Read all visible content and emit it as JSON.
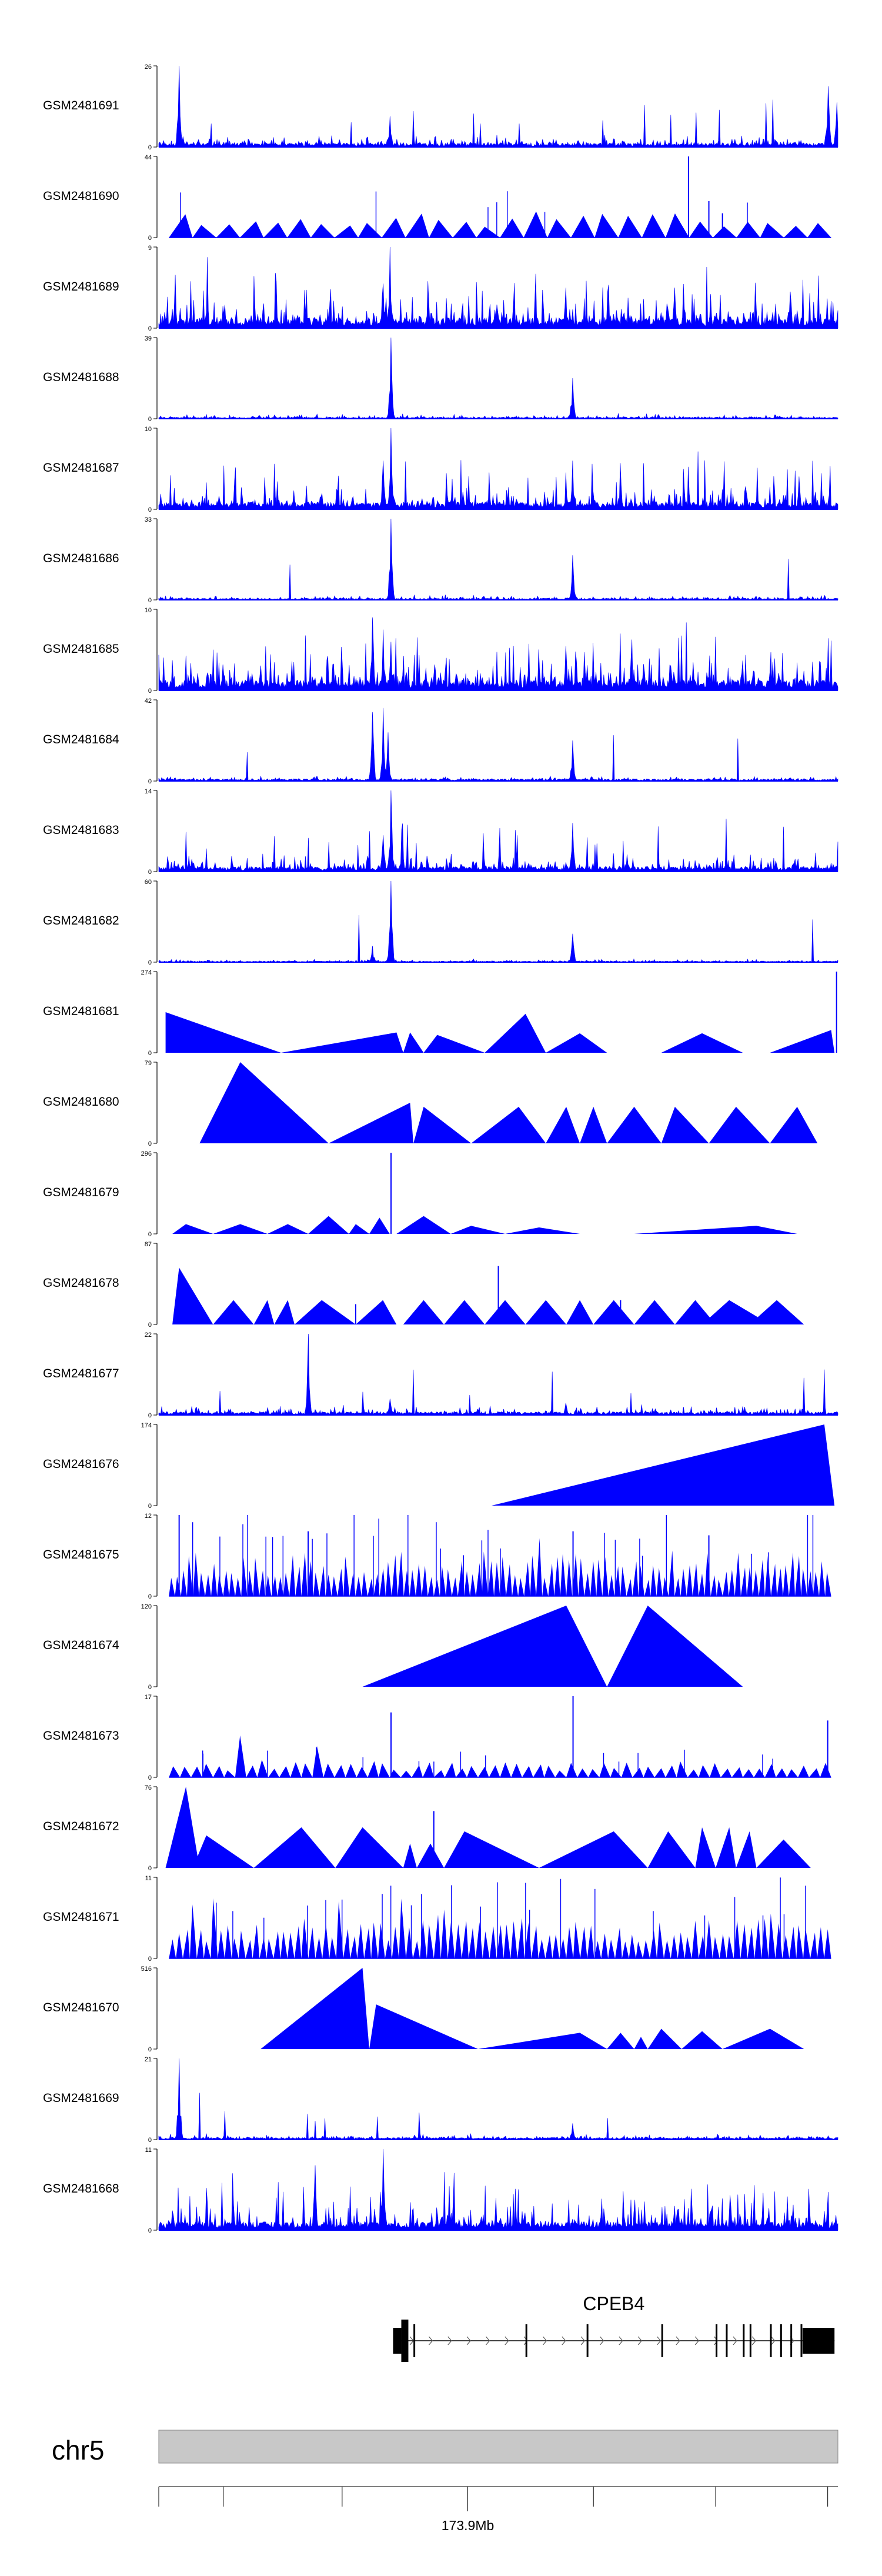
{
  "colors": {
    "track_fill": "#0000ff",
    "axis": "#000000",
    "gene": "#000000",
    "ideogram": "#c8c8c8",
    "ideogram_border": "#888888"
  },
  "chart_data": {
    "type": "area",
    "title": "",
    "xlabel": "",
    "ylabel": "",
    "tracks": [
      {
        "name": "GSM2481691",
        "ymax": "26",
        "ymin": "0",
        "ymax_value": 26,
        "peaks": [
          [
            0.03,
            1.0
          ],
          [
            0.34,
            0.38
          ],
          [
            0.985,
            0.75
          ],
          [
            0.998,
            0.55
          ]
        ]
      },
      {
        "name": "GSM2481690",
        "ymax": "44",
        "ymin": "0",
        "ymax_value": 44,
        "peaks": [
          [
            0.78,
            1.0
          ],
          [
            0.81,
            0.45
          ],
          [
            0.83,
            0.3
          ]
        ]
      },
      {
        "name": "GSM2481689",
        "ymax": "9",
        "ymin": "0",
        "ymax_value": 9,
        "peaks": [
          [
            0.34,
            1.0
          ],
          [
            0.33,
            0.55
          ],
          [
            0.6,
            0.5
          ],
          [
            0.76,
            0.5
          ],
          [
            0.93,
            0.45
          ]
        ]
      },
      {
        "name": "GSM2481688",
        "ymax": "39",
        "ymin": "0",
        "ymax_value": 39,
        "peaks": [
          [
            0.342,
            1.0
          ],
          [
            0.61,
            0.5
          ]
        ]
      },
      {
        "name": "GSM2481687",
        "ymax": "10",
        "ymin": "0",
        "ymax_value": 10,
        "peaks": [
          [
            0.342,
            1.0
          ],
          [
            0.33,
            0.6
          ],
          [
            0.61,
            0.6
          ]
        ]
      },
      {
        "name": "GSM2481686",
        "ymax": "33",
        "ymin": "0",
        "ymax_value": 33,
        "peaks": [
          [
            0.342,
            1.0
          ],
          [
            0.61,
            0.55
          ]
        ]
      },
      {
        "name": "GSM2481685",
        "ymax": "10",
        "ymin": "0",
        "ymax_value": 10,
        "peaks": [
          [
            0.315,
            0.9
          ],
          [
            0.33,
            0.75
          ],
          [
            0.342,
            0.6
          ],
          [
            0.6,
            0.55
          ]
        ]
      },
      {
        "name": "GSM2481684",
        "ymax": "42",
        "ymin": "0",
        "ymax_value": 42,
        "peaks": [
          [
            0.315,
            0.85
          ],
          [
            0.33,
            0.9
          ],
          [
            0.338,
            0.6
          ],
          [
            0.61,
            0.5
          ]
        ]
      },
      {
        "name": "GSM2481683",
        "ymax": "14",
        "ymin": "0",
        "ymax_value": 14,
        "peaks": [
          [
            0.342,
            1.0
          ],
          [
            0.33,
            0.45
          ],
          [
            0.61,
            0.6
          ]
        ]
      },
      {
        "name": "GSM2481682",
        "ymax": "60",
        "ymin": "0",
        "ymax_value": 60,
        "peaks": [
          [
            0.342,
            1.0
          ],
          [
            0.315,
            0.2
          ],
          [
            0.61,
            0.35
          ]
        ]
      },
      {
        "name": "GSM2481681",
        "ymax": "274",
        "ymin": "0",
        "ymax_value": 274,
        "peaks": [
          [
            0.998,
            1.0
          ]
        ]
      },
      {
        "name": "GSM2481680",
        "ymax": "79",
        "ymin": "0",
        "ymax_value": 79,
        "peaks": []
      },
      {
        "name": "GSM2481679",
        "ymax": "296",
        "ymin": "0",
        "ymax_value": 296,
        "peaks": [
          [
            0.342,
            1.0
          ]
        ]
      },
      {
        "name": "GSM2481678",
        "ymax": "87",
        "ymin": "0",
        "ymax_value": 87,
        "peaks": [
          [
            0.5,
            0.72
          ],
          [
            0.29,
            0.25
          ],
          [
            0.68,
            0.3
          ]
        ]
      },
      {
        "name": "GSM2481677",
        "ymax": "22",
        "ymin": "0",
        "ymax_value": 22,
        "peaks": [
          [
            0.22,
            1.0
          ],
          [
            0.34,
            0.2
          ],
          [
            0.6,
            0.15
          ]
        ]
      },
      {
        "name": "GSM2481676",
        "ymax": "174",
        "ymin": "0",
        "ymax_value": 174,
        "peaks": []
      },
      {
        "name": "GSM2481675",
        "ymax": "12",
        "ymin": "0",
        "ymax_value": 12,
        "peaks": [
          [
            0.03,
            1.0
          ],
          [
            0.22,
            0.8
          ],
          [
            0.61,
            0.8
          ],
          [
            0.81,
            0.75
          ]
        ]
      },
      {
        "name": "GSM2481674",
        "ymax": "120",
        "ymin": "0",
        "ymax_value": 120,
        "peaks": []
      },
      {
        "name": "GSM2481673",
        "ymax": "17",
        "ymin": "0",
        "ymax_value": 17,
        "peaks": [
          [
            0.61,
            1.0
          ],
          [
            0.342,
            0.8
          ],
          [
            0.985,
            0.7
          ]
        ]
      },
      {
        "name": "GSM2481672",
        "ymax": "76",
        "ymin": "0",
        "ymax_value": 76,
        "peaks": [
          [
            0.405,
            0.7
          ]
        ]
      },
      {
        "name": "GSM2481671",
        "ymax": "11",
        "ymin": "0",
        "ymax_value": 11,
        "peaks": []
      },
      {
        "name": "GSM2481670",
        "ymax": "516",
        "ymin": "0",
        "ymax_value": 516,
        "peaks": []
      },
      {
        "name": "GSM2481669",
        "ymax": "21",
        "ymin": "0",
        "ymax_value": 21,
        "peaks": [
          [
            0.03,
            1.0
          ],
          [
            0.61,
            0.2
          ]
        ]
      },
      {
        "name": "GSM2481668",
        "ymax": "11",
        "ymin": "0",
        "ymax_value": 11,
        "peaks": [
          [
            0.33,
            1.0
          ],
          [
            0.23,
            0.8
          ]
        ]
      }
    ],
    "gene": {
      "name": "CPEB4",
      "strand": "+",
      "exon_positions": [
        0.36,
        0.375,
        0.54,
        0.63,
        0.74,
        0.82,
        0.835,
        0.86,
        0.87,
        0.9,
        0.915,
        0.93,
        0.945
      ]
    },
    "chromosome": {
      "name": "chr5",
      "tick_label": "173.9Mb",
      "tick_count": 7,
      "labeled_tick_index": 2
    }
  }
}
